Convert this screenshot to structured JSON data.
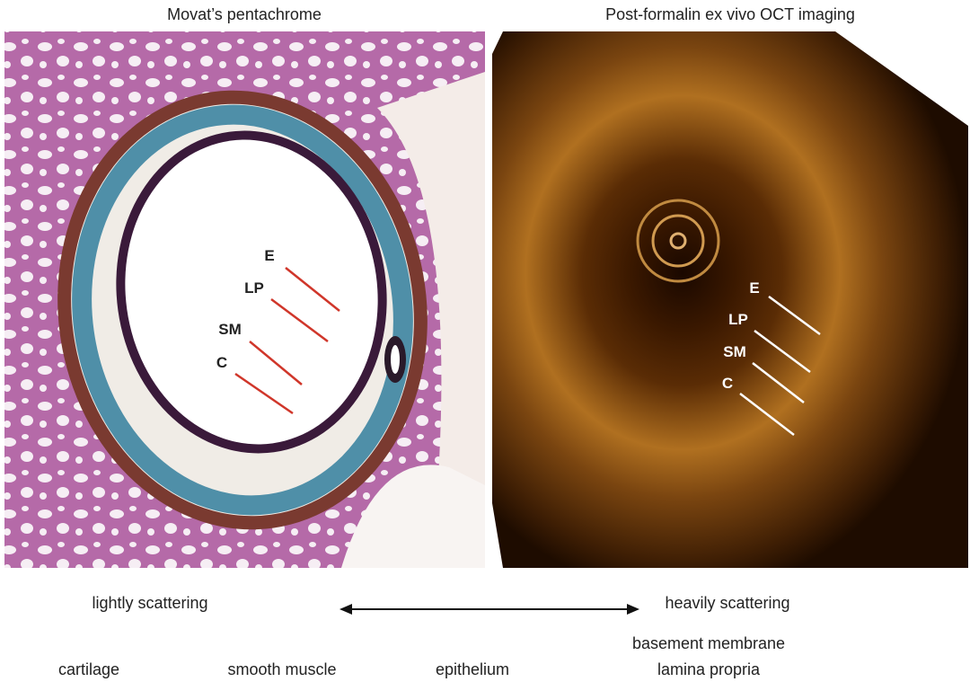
{
  "panels": [
    {
      "title": "Movat’s pentachrome",
      "labels": [
        "E",
        "LP",
        "SM",
        "C"
      ]
    },
    {
      "title": "Post-formalin ex vivo OCT imaging",
      "labels": [
        "E",
        "LP",
        "SM",
        "C"
      ]
    }
  ],
  "scale": {
    "left": "lightly scattering",
    "right": "heavily scattering"
  },
  "tissues": [
    "cartilage",
    "smooth muscle",
    "epithelium",
    "basement membrane",
    "lamina propria"
  ]
}
